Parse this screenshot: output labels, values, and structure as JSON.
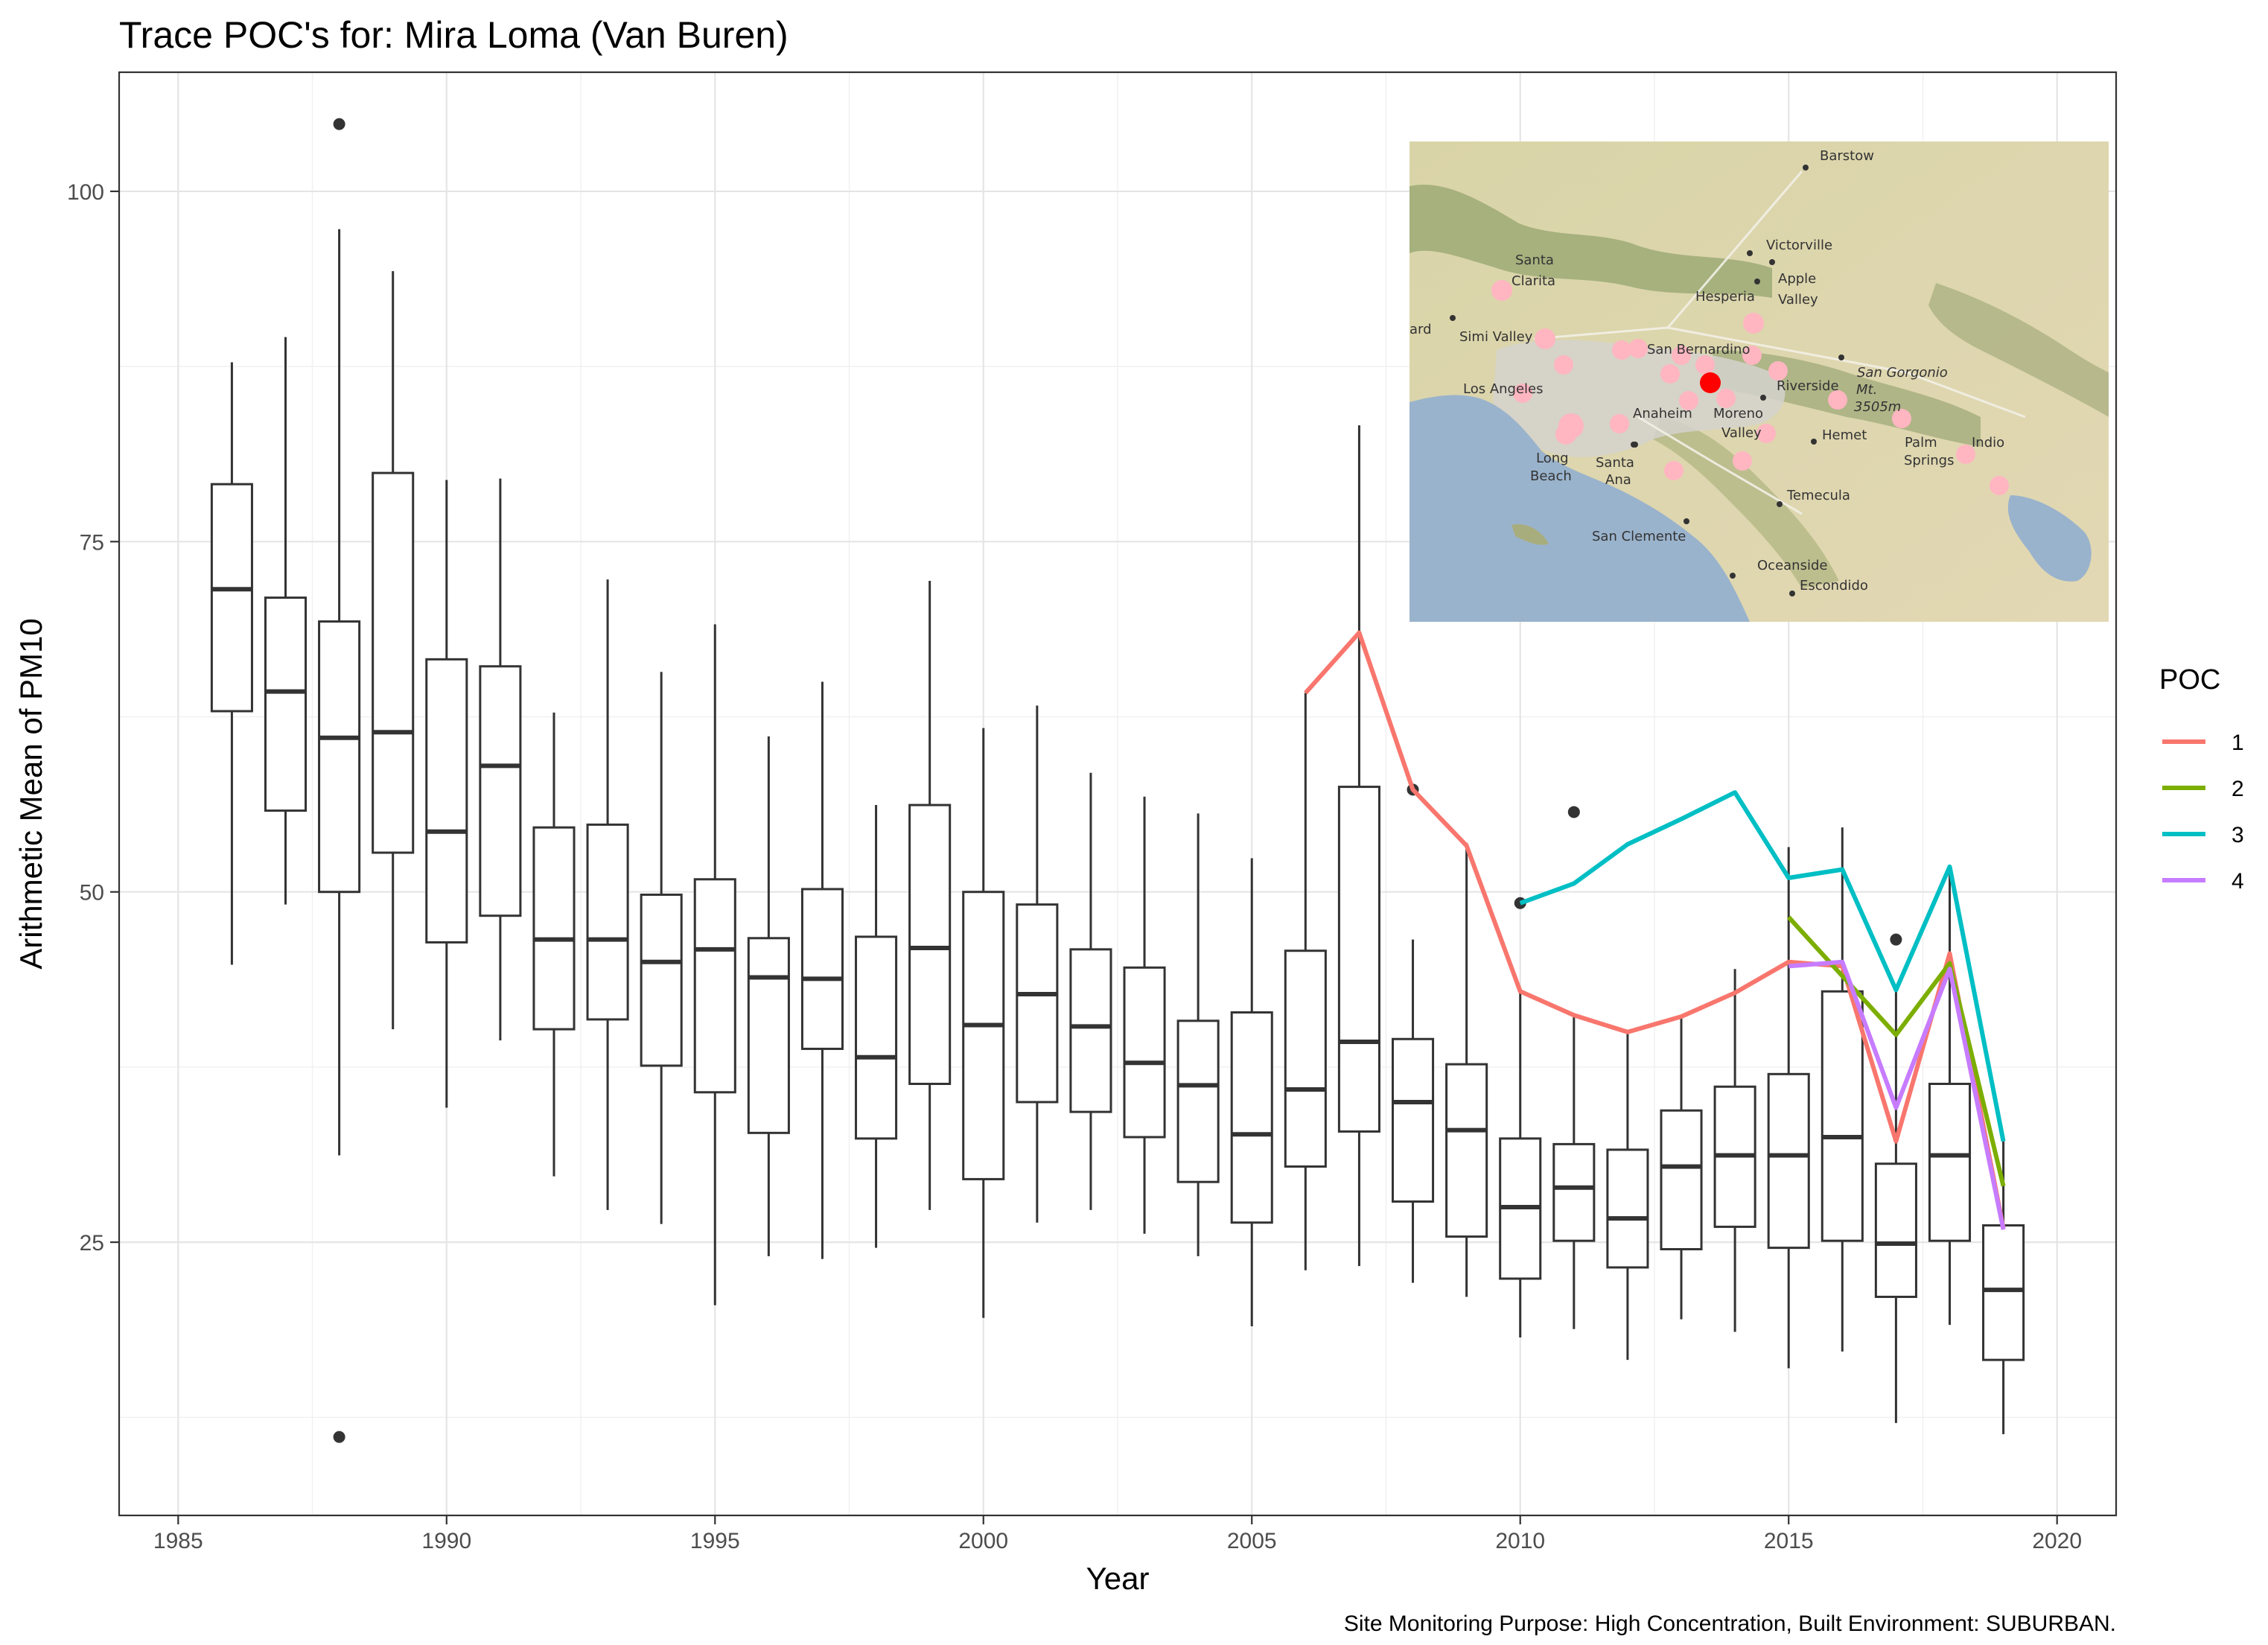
{
  "chart_data": {
    "type": "box",
    "title": "Trace POC's for: Mira Loma (Van Buren)",
    "xlabel": "Year",
    "ylabel": "Arithmetic Mean of PM10",
    "caption": "Site Monitoring Purpose: High Concentration, Built Environment: SUBURBAN.",
    "xlim": [
      1983.9,
      2021.1
    ],
    "ylim": [
      5.5,
      108.5
    ],
    "x_ticks": [
      1985,
      1990,
      1995,
      2000,
      2005,
      2010,
      2015,
      2020
    ],
    "y_ticks": [
      25,
      50,
      75,
      100
    ],
    "grid": true,
    "legend": {
      "title": "POC",
      "position": "right",
      "entries": [
        "1",
        "2",
        "3",
        "4"
      ]
    },
    "boxes": [
      {
        "year": 1986,
        "whisker_low": 44.8,
        "q1": 62.9,
        "median": 71.6,
        "q3": 79.1,
        "whisker_high": 87.8,
        "outliers": []
      },
      {
        "year": 1987,
        "whisker_low": 49.1,
        "q1": 55.8,
        "median": 64.3,
        "q3": 71.0,
        "whisker_high": 89.6,
        "outliers": []
      },
      {
        "year": 1988,
        "whisker_low": 31.2,
        "q1": 50.0,
        "median": 61.0,
        "q3": 69.3,
        "whisker_high": 97.3,
        "outliers": [
          104.8,
          11.1
        ]
      },
      {
        "year": 1989,
        "whisker_low": 40.2,
        "q1": 52.8,
        "median": 61.4,
        "q3": 79.9,
        "whisker_high": 94.3,
        "outliers": []
      },
      {
        "year": 1990,
        "whisker_low": 34.6,
        "q1": 46.4,
        "median": 54.3,
        "q3": 66.6,
        "whisker_high": 79.4,
        "outliers": []
      },
      {
        "year": 1991,
        "whisker_low": 39.4,
        "q1": 48.3,
        "median": 59.0,
        "q3": 66.1,
        "whisker_high": 79.5,
        "outliers": []
      },
      {
        "year": 1992,
        "whisker_low": 29.7,
        "q1": 40.2,
        "median": 46.6,
        "q3": 54.6,
        "whisker_high": 62.8,
        "outliers": []
      },
      {
        "year": 1993,
        "whisker_low": 27.3,
        "q1": 40.9,
        "median": 46.6,
        "q3": 54.8,
        "whisker_high": 72.3,
        "outliers": []
      },
      {
        "year": 1994,
        "whisker_low": 26.3,
        "q1": 37.6,
        "median": 45.0,
        "q3": 49.8,
        "whisker_high": 65.7,
        "outliers": []
      },
      {
        "year": 1995,
        "whisker_low": 20.5,
        "q1": 35.7,
        "median": 45.9,
        "q3": 50.9,
        "whisker_high": 69.1,
        "outliers": []
      },
      {
        "year": 1996,
        "whisker_low": 24.0,
        "q1": 32.8,
        "median": 43.9,
        "q3": 46.7,
        "whisker_high": 61.1,
        "outliers": []
      },
      {
        "year": 1997,
        "whisker_low": 23.8,
        "q1": 38.8,
        "median": 43.8,
        "q3": 50.2,
        "whisker_high": 65.0,
        "outliers": []
      },
      {
        "year": 1998,
        "whisker_low": 24.6,
        "q1": 32.4,
        "median": 38.2,
        "q3": 46.8,
        "whisker_high": 56.2,
        "outliers": []
      },
      {
        "year": 1999,
        "whisker_low": 27.3,
        "q1": 36.3,
        "median": 46.0,
        "q3": 56.2,
        "whisker_high": 72.2,
        "outliers": []
      },
      {
        "year": 2000,
        "whisker_low": 19.6,
        "q1": 29.5,
        "median": 40.5,
        "q3": 50.0,
        "whisker_high": 61.7,
        "outliers": []
      },
      {
        "year": 2001,
        "whisker_low": 26.4,
        "q1": 35.0,
        "median": 42.7,
        "q3": 49.1,
        "whisker_high": 63.3,
        "outliers": []
      },
      {
        "year": 2002,
        "whisker_low": 27.3,
        "q1": 34.3,
        "median": 40.4,
        "q3": 45.9,
        "whisker_high": 58.5,
        "outliers": []
      },
      {
        "year": 2003,
        "whisker_low": 25.6,
        "q1": 32.5,
        "median": 37.8,
        "q3": 44.6,
        "whisker_high": 56.8,
        "outliers": []
      },
      {
        "year": 2004,
        "whisker_low": 24.0,
        "q1": 29.3,
        "median": 36.2,
        "q3": 40.8,
        "whisker_high": 55.6,
        "outliers": []
      },
      {
        "year": 2005,
        "whisker_low": 19.0,
        "q1": 26.4,
        "median": 32.7,
        "q3": 41.4,
        "whisker_high": 52.4,
        "outliers": []
      },
      {
        "year": 2006,
        "whisker_low": 23.0,
        "q1": 30.4,
        "median": 35.9,
        "q3": 45.8,
        "whisker_high": 64.2,
        "outliers": []
      },
      {
        "year": 2007,
        "whisker_low": 23.3,
        "q1": 32.9,
        "median": 39.3,
        "q3": 57.5,
        "whisker_high": 83.3,
        "outliers": []
      },
      {
        "year": 2008,
        "whisker_low": 22.1,
        "q1": 27.9,
        "median": 35.0,
        "q3": 39.5,
        "whisker_high": 46.6,
        "outliers": [
          57.3
        ]
      },
      {
        "year": 2009,
        "whisker_low": 21.1,
        "q1": 25.4,
        "median": 33.0,
        "q3": 37.7,
        "whisker_high": 53.5,
        "outliers": []
      },
      {
        "year": 2010,
        "whisker_low": 18.2,
        "q1": 22.4,
        "median": 27.5,
        "q3": 32.4,
        "whisker_high": 42.9,
        "outliers": [
          49.2
        ]
      },
      {
        "year": 2011,
        "whisker_low": 18.8,
        "q1": 25.1,
        "median": 28.9,
        "q3": 32.0,
        "whisker_high": 41.2,
        "outliers": [
          55.7
        ]
      },
      {
        "year": 2012,
        "whisker_low": 16.6,
        "q1": 23.2,
        "median": 26.7,
        "q3": 31.6,
        "whisker_high": 40.0,
        "outliers": []
      },
      {
        "year": 2013,
        "whisker_low": 19.5,
        "q1": 24.5,
        "median": 30.4,
        "q3": 34.4,
        "whisker_high": 41.1,
        "outliers": []
      },
      {
        "year": 2014,
        "whisker_low": 18.6,
        "q1": 26.1,
        "median": 31.2,
        "q3": 36.1,
        "whisker_high": 44.5,
        "outliers": []
      },
      {
        "year": 2015,
        "whisker_low": 16.0,
        "q1": 24.6,
        "median": 31.2,
        "q3": 37.0,
        "whisker_high": 53.2,
        "outliers": []
      },
      {
        "year": 2016,
        "whisker_low": 17.2,
        "q1": 25.1,
        "median": 32.5,
        "q3": 42.9,
        "whisker_high": 54.6,
        "outliers": []
      },
      {
        "year": 2017,
        "whisker_low": 12.1,
        "q1": 21.1,
        "median": 24.9,
        "q3": 30.6,
        "whisker_high": 43.0,
        "outliers": [
          46.6
        ]
      },
      {
        "year": 2018,
        "whisker_low": 19.1,
        "q1": 25.1,
        "median": 31.2,
        "q3": 36.3,
        "whisker_high": 51.4,
        "outliers": []
      },
      {
        "year": 2019,
        "whisker_low": 11.3,
        "q1": 16.6,
        "median": 21.6,
        "q3": 26.2,
        "whisker_high": 32.2,
        "outliers": []
      }
    ],
    "series": [
      {
        "name": "1",
        "color": "#F8766D",
        "x": [
          2006,
          2007,
          2008,
          2009,
          2010,
          2011,
          2012,
          2013,
          2014,
          2015,
          2016,
          2017,
          2018,
          2019
        ],
        "y": [
          64.2,
          68.5,
          57.3,
          53.3,
          42.9,
          41.2,
          40.0,
          41.1,
          42.8,
          45.0,
          44.7,
          32.2,
          45.6,
          26.0
        ]
      },
      {
        "name": "2",
        "color": "#7CAE00",
        "x": [
          2015,
          2016,
          2017,
          2018,
          2019
        ],
        "y": [
          48.2,
          44.0,
          39.8,
          44.9,
          29.0
        ]
      },
      {
        "name": "3",
        "color": "#00BFC4",
        "x": [
          2010,
          2011,
          2012,
          2013,
          2014,
          2015,
          2016,
          2017,
          2018,
          2019
        ],
        "y": [
          49.2,
          50.6,
          53.4,
          55.2,
          57.1,
          51.0,
          51.6,
          43.0,
          51.8,
          32.2
        ]
      },
      {
        "name": "4",
        "color": "#C77CFF",
        "x": [
          2015,
          2016,
          2017,
          2018,
          2019
        ],
        "y": [
          44.7,
          45.0,
          34.6,
          44.5,
          25.9
        ]
      }
    ]
  },
  "map": {
    "labels": [
      {
        "text": "Barstow",
        "italic": false
      },
      {
        "text": "Victorville",
        "italic": false
      },
      {
        "text": "Santa",
        "italic": false
      },
      {
        "text": "Clarita",
        "italic": false
      },
      {
        "text": "Apple",
        "italic": false
      },
      {
        "text": "Valley",
        "italic": false
      },
      {
        "text": "Hesperia",
        "italic": false
      },
      {
        "text": "ard",
        "italic": false
      },
      {
        "text": "Simi Valley",
        "italic": false
      },
      {
        "text": "San Bernardino",
        "italic": false
      },
      {
        "text": "San Gorgonio",
        "italic": true
      },
      {
        "text": "Mt.",
        "italic": true
      },
      {
        "text": "3505m",
        "italic": true
      },
      {
        "text": "Los Angeles",
        "italic": false
      },
      {
        "text": "Riverside",
        "italic": false
      },
      {
        "text": "Anaheim",
        "italic": false
      },
      {
        "text": "Moreno",
        "italic": false
      },
      {
        "text": "Valley",
        "italic": false
      },
      {
        "text": "Hemet",
        "italic": false
      },
      {
        "text": "Palm",
        "italic": false
      },
      {
        "text": "Springs",
        "italic": false
      },
      {
        "text": "Indio",
        "italic": false
      },
      {
        "text": "Long",
        "italic": false
      },
      {
        "text": "Beach",
        "italic": false
      },
      {
        "text": "Santa",
        "italic": false
      },
      {
        "text": "Ana",
        "italic": false
      },
      {
        "text": "Temecula",
        "italic": false
      },
      {
        "text": "San Clemente",
        "italic": false
      },
      {
        "text": "Oceanside",
        "italic": false
      },
      {
        "text": "Escondido",
        "italic": false
      }
    ],
    "site_color": "#FF0000",
    "other_sites_color": "#FFB6C1"
  }
}
